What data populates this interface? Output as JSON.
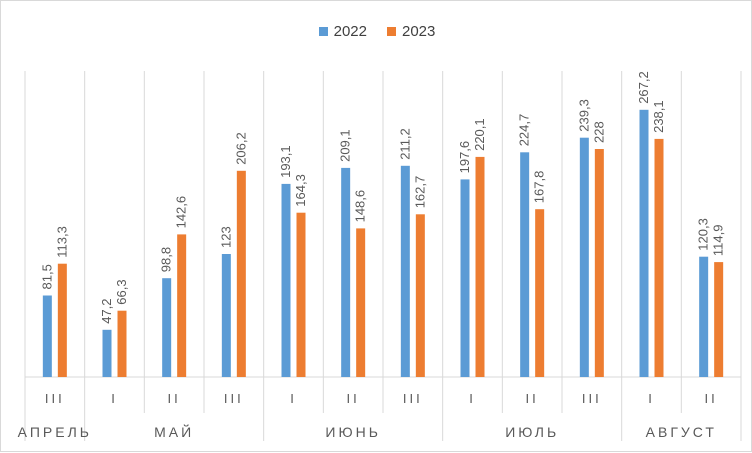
{
  "chart_data": {
    "type": "bar",
    "categories": [
      "III",
      "I",
      "II",
      "III",
      "I",
      "II",
      "III",
      "I",
      "II",
      "III",
      "I",
      "II"
    ],
    "groups": [
      {
        "label": "АПРЕЛЬ",
        "count": 1
      },
      {
        "label": "МАЙ",
        "count": 3
      },
      {
        "label": "ИЮНЬ",
        "count": 3
      },
      {
        "label": "ИЮЛЬ",
        "count": 3
      },
      {
        "label": "АВГУСТ",
        "count": 2
      }
    ],
    "series": [
      {
        "name": "2022",
        "color": "#5b9bd5",
        "values": [
          81.5,
          47.2,
          98.8,
          123,
          193.1,
          209.1,
          211.2,
          197.6,
          224.7,
          239.3,
          267.2,
          120.3
        ],
        "labels": [
          "81,5",
          "47,2",
          "98,8",
          "123",
          "193,1",
          "209,1",
          "211,2",
          "197,6",
          "224,7",
          "239,3",
          "267,2",
          "120,3"
        ]
      },
      {
        "name": "2023",
        "color": "#ed7d31",
        "values": [
          113.3,
          66.3,
          142.6,
          206.2,
          164.3,
          148.6,
          162.7,
          220.1,
          167.8,
          228,
          238.1,
          114.9
        ],
        "labels": [
          "113,3",
          "66,3",
          "142,6",
          "206,2",
          "164,3",
          "148,6",
          "162,7",
          "220,1",
          "167,8",
          "228",
          "238,1",
          "114,9"
        ]
      }
    ],
    "ylim": [
      0,
      300
    ],
    "legend": "top-center",
    "grid": "vertical-separators"
  }
}
